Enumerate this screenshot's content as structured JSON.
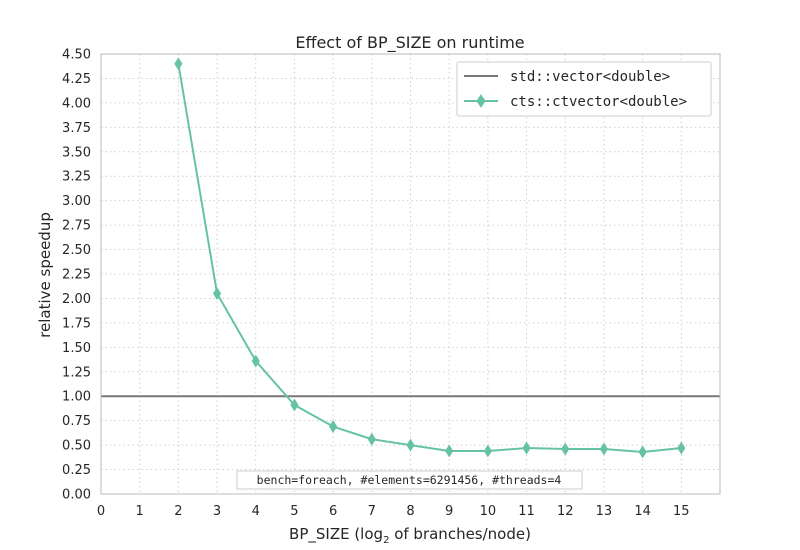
{
  "chart_data": {
    "type": "line",
    "title": "Effect of BP_SIZE on runtime",
    "xlabel": {
      "prefix": "BP_SIZE (log",
      "subscript": "2",
      "suffix": " of branches/node)"
    },
    "ylabel": "relative speedup",
    "xlim": [
      0,
      16
    ],
    "ylim": [
      0,
      4.5
    ],
    "xticks": [
      0,
      1,
      2,
      3,
      4,
      5,
      6,
      7,
      8,
      9,
      10,
      11,
      12,
      13,
      14,
      15
    ],
    "yticks": [
      "0.00",
      "0.25",
      "0.50",
      "0.75",
      "1.00",
      "1.25",
      "1.50",
      "1.75",
      "2.00",
      "2.25",
      "2.50",
      "2.75",
      "3.00",
      "3.25",
      "3.50",
      "3.75",
      "4.00",
      "4.25",
      "4.50"
    ],
    "grid": true,
    "legend_position": "top-right",
    "series": [
      {
        "name": "std::vector<double>",
        "kind": "hline",
        "y": 1.0,
        "color": "#777777",
        "marker": "none"
      },
      {
        "name": "cts::ctvector<double>",
        "kind": "line",
        "color": "#66c2a5",
        "marker": "diamond",
        "x": [
          2,
          3,
          4,
          5,
          6,
          7,
          8,
          9,
          10,
          11,
          12,
          13,
          14,
          15
        ],
        "y": [
          4.4,
          2.05,
          1.36,
          0.91,
          0.69,
          0.56,
          0.5,
          0.44,
          0.44,
          0.47,
          0.46,
          0.46,
          0.43,
          0.47
        ]
      }
    ],
    "annotation": "bench=foreach, #elements=6291456, #threads=4"
  }
}
